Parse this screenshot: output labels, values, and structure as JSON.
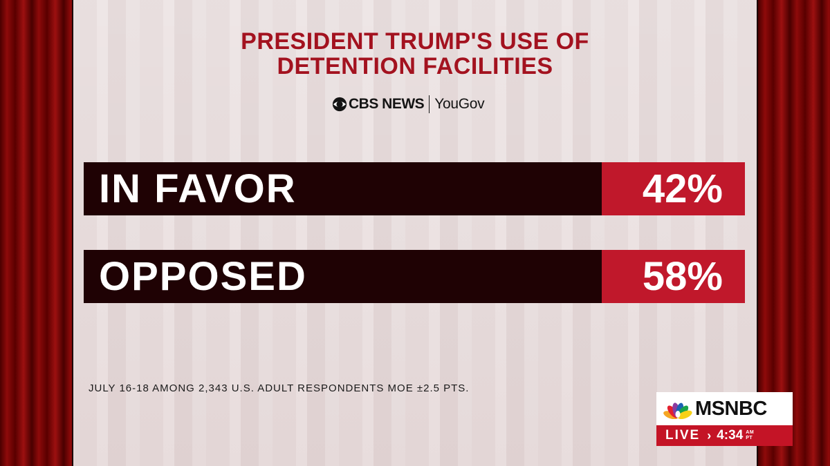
{
  "graphic": {
    "title_line1": "PRESIDENT TRUMP'S USE OF",
    "title_line2": "DETENTION FACILITIES",
    "sources": {
      "cbs": "CBS NEWS",
      "yougov": "YouGov"
    },
    "rows": [
      {
        "label": "IN FAVOR",
        "value": "42%"
      },
      {
        "label": "OPPOSED",
        "value": "58%"
      }
    ],
    "footnote": "JULY 16-18 AMONG 2,343 U.S. ADULT RESPONDENTS MOE ±2.5 PTS."
  },
  "network_bug": {
    "name": "MSNBC",
    "live_label": "LIVE",
    "chevron": "›",
    "time": "4:34",
    "meridiem": "AM",
    "timezone": "PT"
  },
  "colors": {
    "title_red": "#a3121f",
    "bar_dark": "#1f0204",
    "bar_red": "#c0182b",
    "bug_red": "#c41426"
  },
  "icons": [
    "cbs-eye-icon",
    "msnbc-peacock-icon"
  ]
}
